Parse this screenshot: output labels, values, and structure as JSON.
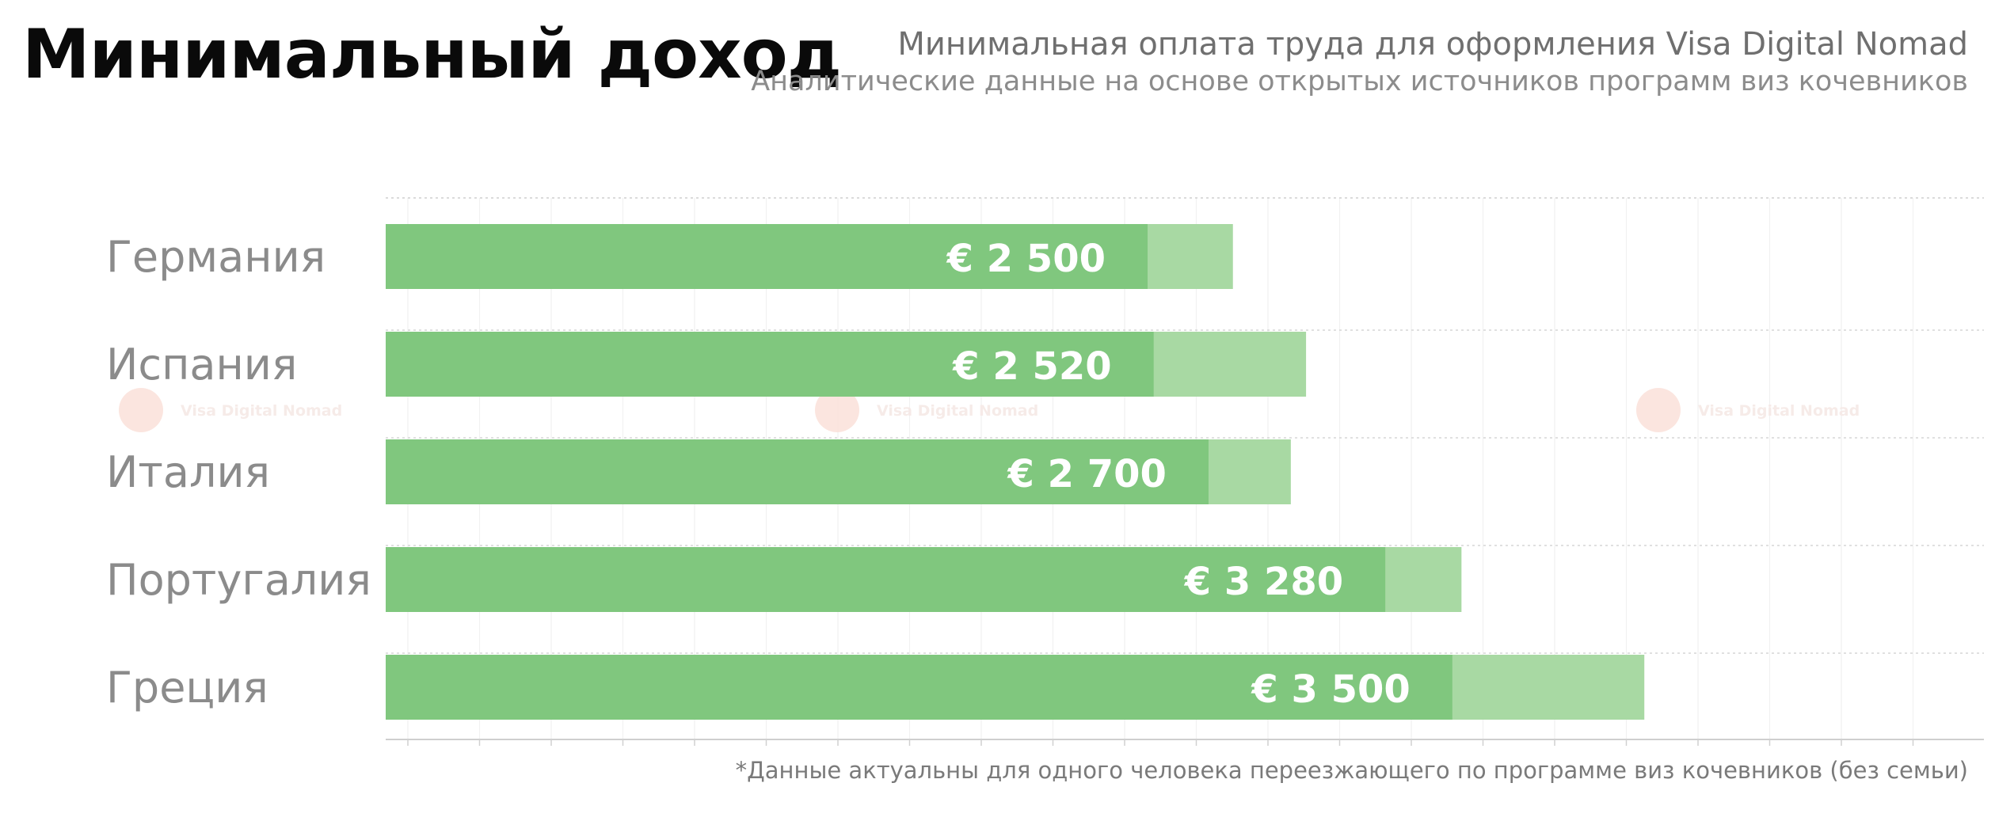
{
  "header": {
    "title": "Минимальный доход",
    "subtitle": "Минимальная оплата труда для оформления Visa Digital Nomad",
    "subtitle2": "Аналитические данные на основе открытых источников программ виз кочевников"
  },
  "footnote": "*Данные актуальны для одного человека переезжающего по программе виз кочевников (без семьи)",
  "watermark": {
    "text": "Visa Digital Nomad"
  },
  "colors": {
    "bar_main": "#80c77e",
    "bar_extension": "#a8d9a3",
    "label": "#8b8b8b",
    "grid": "#d9d9d9"
  },
  "chart_data": {
    "type": "bar",
    "orientation": "horizontal",
    "categories": [
      "Германия",
      "Испания",
      "Италия",
      "Португалия",
      "Греция"
    ],
    "values": [
      2500,
      2520,
      2700,
      3280,
      3500
    ],
    "value_labels": [
      "€ 2 500",
      "€ 2 520",
      "€ 2 700",
      "€ 3 280",
      "€ 3 500"
    ],
    "extension_values": [
      2780,
      3020,
      2970,
      3530,
      4130
    ],
    "xlim": [
      0,
      5500
    ],
    "grid": true,
    "legend": "none"
  }
}
